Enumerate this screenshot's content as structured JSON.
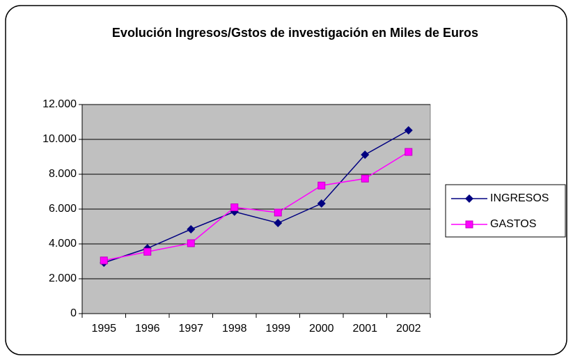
{
  "chart_data": {
    "type": "line",
    "title": "Evolución Ingresos/Gstos de investigación en Miles de Euros",
    "categories": [
      "1995",
      "1996",
      "1997",
      "1998",
      "1999",
      "2000",
      "2001",
      "2002"
    ],
    "series": [
      {
        "name": "INGRESOS",
        "color": "#000080",
        "values": [
          2920,
          3750,
          4840,
          5850,
          5200,
          6320,
          9120,
          10520
        ]
      },
      {
        "name": "GASTOS",
        "color": "#ff00ff",
        "values": [
          3050,
          3550,
          4040,
          6100,
          5800,
          7350,
          7750,
          9280
        ]
      }
    ],
    "ylim": [
      0,
      12000
    ],
    "yticks": [
      0,
      {
        "value": 2000,
        "label": "2.000"
      },
      {
        "value": 4000,
        "label": "4.000"
      },
      {
        "value": 6000,
        "label": "6.000"
      },
      {
        "value": 8000,
        "label": "8.000"
      },
      {
        "value": 10000,
        "label": "10.000"
      },
      {
        "value": 12000,
        "label": "12.000"
      }
    ],
    "grid": true,
    "legend": "right",
    "plot_background": "#c0c0c0"
  }
}
